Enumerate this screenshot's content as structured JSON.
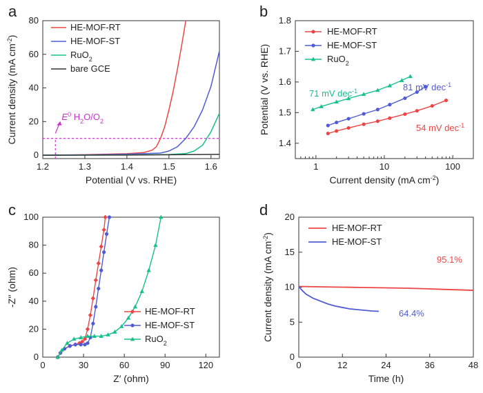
{
  "chart_data": [
    {
      "panel": "a",
      "type": "line",
      "xlabel": "Potential (V vs. RHE)",
      "ylabel": "Current density (mA cm⁻²)",
      "xlim": [
        1.2,
        1.62
      ],
      "ylim": [
        -2,
        80
      ],
      "xticks": [
        "1.2",
        "1.3",
        "1.4",
        "1.5",
        "1.6"
      ],
      "yticks": [
        "0",
        "20",
        "40",
        "60",
        "80"
      ],
      "legend_position": "top-left",
      "series": [
        {
          "name": "HE-MOF-RT",
          "color": "#ef4444",
          "x": [
            1.2,
            1.3,
            1.4,
            1.44,
            1.46,
            1.47,
            1.48,
            1.49,
            1.5,
            1.51,
            1.52,
            1.53,
            1.54
          ],
          "y": [
            0,
            0.3,
            0.9,
            1.6,
            3,
            5,
            10,
            17,
            27,
            38,
            51,
            65,
            80
          ]
        },
        {
          "name": "HE-MOF-ST",
          "color": "#4f5bd5",
          "x": [
            1.2,
            1.3,
            1.4,
            1.48,
            1.5,
            1.52,
            1.54,
            1.56,
            1.58,
            1.6,
            1.62
          ],
          "y": [
            0,
            0.2,
            0.6,
            1.3,
            2.5,
            5,
            10,
            17,
            27,
            41,
            62
          ]
        },
        {
          "name": "RuO2",
          "color": "#17c08a",
          "x": [
            1.2,
            1.4,
            1.5,
            1.54,
            1.56,
            1.58,
            1.6,
            1.62
          ],
          "y": [
            0,
            0.2,
            0.4,
            1,
            2.5,
            6,
            14,
            25
          ]
        },
        {
          "name": "bare GCE",
          "color": "#333333",
          "x": [
            1.2,
            1.4,
            1.62
          ],
          "y": [
            0,
            0.1,
            0.5
          ]
        }
      ],
      "reference_lines": {
        "vertical_x": 1.23,
        "horizontal_y": 10,
        "color": "#cc33cc"
      },
      "annotation": {
        "text_pre": "E",
        "text_sup": "0",
        "text_mid": " H",
        "sub1": "2",
        "text_mid2": "O/O",
        "sub2": "2"
      }
    },
    {
      "panel": "b",
      "type": "scatter",
      "xscale": "log",
      "xlabel": "Current density (mA cm⁻²)",
      "ylabel": "Potential (V vs. RHE)",
      "xlim": [
        0.5,
        200
      ],
      "ylim": [
        1.35,
        1.8
      ],
      "xticks": [
        "1",
        "10",
        "100"
      ],
      "yticks": [
        "1.4",
        "1.5",
        "1.6",
        "1.7",
        "1.8"
      ],
      "legend_position": "top-left",
      "series": [
        {
          "name": "HE-MOF-RT",
          "color": "#ef4444",
          "x": [
            1.5,
            2,
            3,
            5,
            8,
            12,
            20,
            30,
            50,
            80
          ],
          "y": [
            1.432,
            1.44,
            1.45,
            1.462,
            1.472,
            1.482,
            1.495,
            1.506,
            1.522,
            1.54
          ],
          "label": "54 mV dec⁻¹"
        },
        {
          "name": "HE-MOF-ST",
          "color": "#4f5bd5",
          "x": [
            1.5,
            2,
            3,
            5,
            8,
            12,
            20,
            30,
            40
          ],
          "y": [
            1.458,
            1.468,
            1.48,
            1.496,
            1.51,
            1.526,
            1.547,
            1.567,
            1.585
          ],
          "label": "81 mV dec⁻¹"
        },
        {
          "name": "RuO2",
          "color": "#17c08a",
          "x": [
            0.9,
            1.2,
            2,
            3,
            5,
            8,
            12,
            18,
            24
          ],
          "y": [
            1.51,
            1.52,
            1.535,
            1.546,
            1.56,
            1.573,
            1.588,
            1.605,
            1.618
          ],
          "label": "71 mV dec⁻¹"
        }
      ]
    },
    {
      "panel": "c",
      "type": "scatter",
      "xlabel": "Z′ (ohm)",
      "ylabel": "-Z′′ (ohm)",
      "xlim": [
        0,
        130
      ],
      "ylim": [
        0,
        100
      ],
      "xticks": [
        "0",
        "30",
        "60",
        "90",
        "120"
      ],
      "yticks": [
        "0",
        "20",
        "40",
        "60",
        "80",
        "100"
      ],
      "legend_position": "bottom-right",
      "series": [
        {
          "name": "HE-MOF-RT",
          "color": "#ef4444",
          "x": [
            11,
            13,
            16,
            20,
            24,
            27,
            29,
            31,
            33,
            35,
            37,
            39,
            41,
            43,
            45,
            46
          ],
          "y": [
            0,
            3,
            6,
            8,
            9,
            10,
            11,
            13,
            20,
            30,
            42,
            55,
            67,
            79,
            91,
            100
          ]
        },
        {
          "name": "HE-MOF-ST",
          "color": "#4f5bd5",
          "x": [
            11,
            13,
            16,
            20,
            24,
            28,
            31,
            33,
            35,
            37,
            39,
            41,
            43,
            45,
            47,
            49
          ],
          "y": [
            0,
            3,
            6,
            8,
            9,
            9,
            9,
            10,
            14,
            24,
            36,
            49,
            62,
            75,
            88,
            100
          ]
        },
        {
          "name": "RuO2",
          "color": "#17c08a",
          "x": [
            11,
            14,
            18,
            23,
            28,
            33,
            38,
            43,
            48,
            53,
            58,
            63,
            68,
            73,
            78,
            83,
            87
          ],
          "y": [
            0,
            5,
            10,
            13,
            14,
            15,
            15,
            15,
            16,
            18,
            22,
            28,
            36,
            47,
            62,
            80,
            100
          ]
        }
      ]
    },
    {
      "panel": "d",
      "type": "line",
      "xlabel": "Time (h)",
      "ylabel": "Current density (mA cm⁻²)",
      "xlim": [
        0,
        48
      ],
      "ylim": [
        0,
        20
      ],
      "xticks": [
        "0",
        "12",
        "24",
        "36",
        "48"
      ],
      "yticks": [
        "0",
        "5",
        "10",
        "15",
        "20"
      ],
      "legend_position": "top-left",
      "series": [
        {
          "name": "HE-MOF-RT",
          "color": "#ef4444",
          "x": [
            0,
            6,
            12,
            18,
            24,
            30,
            36,
            42,
            48
          ],
          "y": [
            10.1,
            10.05,
            10.0,
            9.95,
            9.9,
            9.85,
            9.75,
            9.65,
            9.55
          ],
          "label": "95.1%"
        },
        {
          "name": "HE-MOF-ST",
          "color": "#4f5bd5",
          "x": [
            0,
            1,
            2,
            4,
            6,
            8,
            10,
            12,
            14,
            16,
            18,
            20,
            22
          ],
          "y": [
            10.1,
            9.5,
            9.0,
            8.4,
            8.0,
            7.6,
            7.3,
            7.1,
            6.9,
            6.8,
            6.7,
            6.6,
            6.55
          ],
          "label": "64.4%"
        }
      ]
    }
  ],
  "panel_labels": [
    "a",
    "b",
    "c",
    "d"
  ]
}
